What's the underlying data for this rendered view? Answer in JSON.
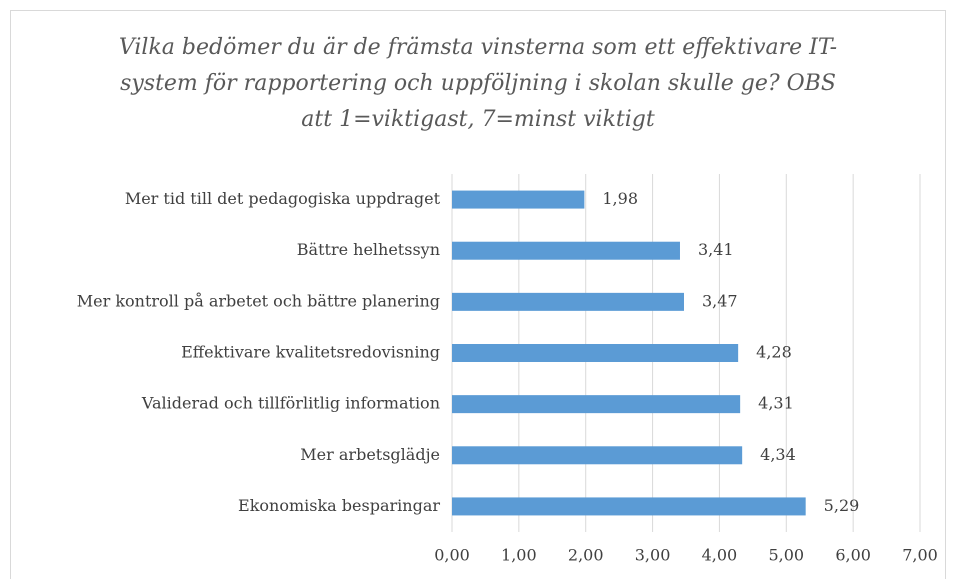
{
  "chart_data": {
    "type": "hbar",
    "title": "Vilka bedömer du är de främsta vinsterna som ett effektivare IT-system för rapportering och uppföljning i skolan skulle ge? OBS att 1=viktigast, 7=minst viktigt",
    "categories": [
      "Mer tid till det pedagogiska uppdraget",
      "Bättre helhetssyn",
      "Mer kontroll på arbetet och bättre planering",
      "Effektivare kvalitetsredovisning",
      "Validerad och tillförlitlig information",
      "Mer arbetsglädje",
      "Ekonomiska besparingar"
    ],
    "values": [
      1.98,
      3.41,
      3.47,
      4.28,
      4.31,
      4.34,
      5.29
    ],
    "value_labels": [
      "1,98",
      "3,41",
      "3,47",
      "4,28",
      "4,31",
      "4,34",
      "5,29"
    ],
    "color": "#5b9bd5",
    "xlim": [
      0,
      7
    ],
    "xticks": [
      {
        "value": 0,
        "label": "0,00"
      },
      {
        "value": 1,
        "label": "1,00"
      },
      {
        "value": 2,
        "label": "2,00"
      },
      {
        "value": 3,
        "label": "3,00"
      },
      {
        "value": 4,
        "label": "4,00"
      },
      {
        "value": 5,
        "label": "5,00"
      },
      {
        "value": 6,
        "label": "6,00"
      },
      {
        "value": 7,
        "label": "7,00"
      }
    ],
    "grid": true
  }
}
